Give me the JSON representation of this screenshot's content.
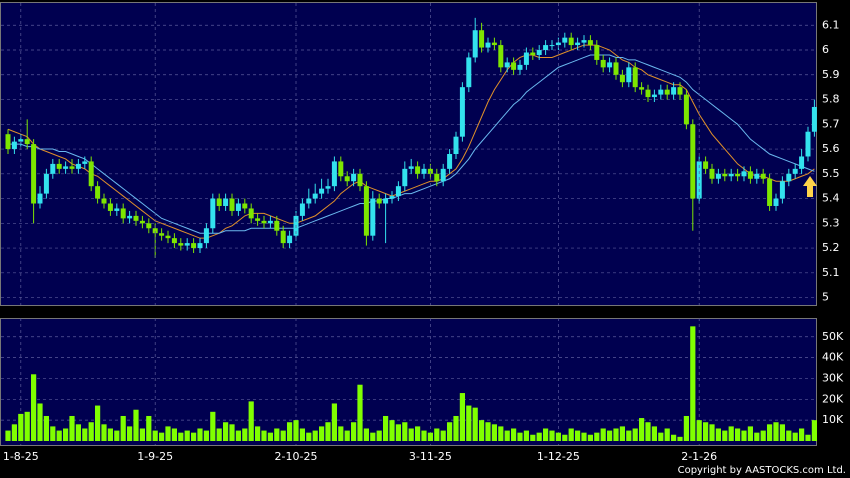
{
  "chart_data": [
    {
      "type": "candlestick",
      "open": [
        5.66,
        5.6,
        5.63,
        5.64,
        5.62,
        5.38,
        5.42,
        5.5,
        5.54,
        5.52,
        5.53,
        5.52,
        5.54,
        5.55,
        5.45,
        5.4,
        5.38,
        5.35,
        5.36,
        5.32,
        5.33,
        5.31,
        5.3,
        5.28,
        5.26,
        5.25,
        5.24,
        5.22,
        5.21,
        5.22,
        5.2,
        5.22,
        5.28,
        5.4,
        5.37,
        5.4,
        5.35,
        5.38,
        5.36,
        5.32,
        5.31,
        5.3,
        5.31,
        5.27,
        5.22,
        5.25,
        5.33,
        5.38,
        5.4,
        5.42,
        5.44,
        5.45,
        5.55,
        5.49,
        5.47,
        5.5,
        5.45,
        5.25,
        5.4,
        5.38,
        5.4,
        5.41,
        5.45,
        5.52,
        5.53,
        5.5,
        5.52,
        5.5,
        5.47,
        5.52,
        5.58,
        5.65,
        5.85,
        5.97,
        6.08,
        6.01,
        6.03,
        6.02,
        5.93,
        5.95,
        5.92,
        5.94,
        5.99,
        5.98,
        6.0,
        6.02,
        6.02,
        6.03,
        6.05,
        6.02,
        6.03,
        6.04,
        6.02,
        5.96,
        5.93,
        5.95,
        5.9,
        5.87,
        5.93,
        5.85,
        5.84,
        5.81,
        5.82,
        5.84,
        5.82,
        5.85,
        5.82,
        5.7,
        5.4,
        5.55,
        5.52,
        5.48,
        5.5,
        5.49,
        5.5,
        5.49,
        5.51,
        5.48,
        5.5,
        5.48,
        5.37,
        5.4,
        5.47,
        5.5,
        5.52,
        5.57,
        5.67
      ],
      "high": [
        5.68,
        5.65,
        5.66,
        5.72,
        5.64,
        5.45,
        5.52,
        5.56,
        5.56,
        5.55,
        5.56,
        5.56,
        5.57,
        5.57,
        5.47,
        5.42,
        5.4,
        5.38,
        5.38,
        5.35,
        5.35,
        5.33,
        5.32,
        5.3,
        5.28,
        5.27,
        5.26,
        5.24,
        5.24,
        5.24,
        5.24,
        5.3,
        5.42,
        5.42,
        5.42,
        5.42,
        5.4,
        5.4,
        5.38,
        5.34,
        5.33,
        5.33,
        5.33,
        5.29,
        5.27,
        5.35,
        5.4,
        5.44,
        5.46,
        5.48,
        5.48,
        5.57,
        5.57,
        5.51,
        5.52,
        5.52,
        5.47,
        5.43,
        5.42,
        5.42,
        5.43,
        5.47,
        5.55,
        5.56,
        5.55,
        5.54,
        5.54,
        5.52,
        5.54,
        5.6,
        5.67,
        5.87,
        5.99,
        6.13,
        6.11,
        6.05,
        6.05,
        6.04,
        5.97,
        5.97,
        5.96,
        6.01,
        6.01,
        6.02,
        6.04,
        6.04,
        6.05,
        6.07,
        6.07,
        6.05,
        6.06,
        6.06,
        6.04,
        5.98,
        5.97,
        5.97,
        5.92,
        5.95,
        5.95,
        5.87,
        5.86,
        5.84,
        5.86,
        5.86,
        5.87,
        5.87,
        5.84,
        5.72,
        5.57,
        5.57,
        5.54,
        5.52,
        5.52,
        5.52,
        5.52,
        5.53,
        5.53,
        5.52,
        5.52,
        5.5,
        5.42,
        5.49,
        5.52,
        5.54,
        5.6,
        5.69,
        5.8
      ],
      "low": [
        5.58,
        5.58,
        5.61,
        5.6,
        5.3,
        5.36,
        5.4,
        5.48,
        5.5,
        5.5,
        5.5,
        5.5,
        5.52,
        5.43,
        5.38,
        5.36,
        5.33,
        5.33,
        5.3,
        5.3,
        5.29,
        5.28,
        5.26,
        5.16,
        5.23,
        5.22,
        5.2,
        5.19,
        5.19,
        5.18,
        5.18,
        5.2,
        5.26,
        5.35,
        5.35,
        5.33,
        5.33,
        5.34,
        5.3,
        5.29,
        5.28,
        5.28,
        5.25,
        5.2,
        5.2,
        5.23,
        5.31,
        5.36,
        5.38,
        5.4,
        5.42,
        5.43,
        5.47,
        5.45,
        5.45,
        5.43,
        5.21,
        5.23,
        5.36,
        5.22,
        5.38,
        5.39,
        5.43,
        5.5,
        5.48,
        5.48,
        5.48,
        5.45,
        5.45,
        5.5,
        5.56,
        5.63,
        5.83,
        5.95,
        5.99,
        5.99,
        6.0,
        5.91,
        5.91,
        5.9,
        5.9,
        5.92,
        5.96,
        5.96,
        5.98,
        6.0,
        6.0,
        6.01,
        6.0,
        6.0,
        6.01,
        6.0,
        5.94,
        5.91,
        5.91,
        5.88,
        5.85,
        5.85,
        5.83,
        5.82,
        5.79,
        5.79,
        5.8,
        5.8,
        5.8,
        5.8,
        5.68,
        5.27,
        5.38,
        5.5,
        5.46,
        5.46,
        5.47,
        5.47,
        5.47,
        5.47,
        5.46,
        5.46,
        5.46,
        5.35,
        5.35,
        5.38,
        5.45,
        5.48,
        5.5,
        5.55,
        5.65
      ],
      "close": [
        5.6,
        5.63,
        5.64,
        5.62,
        5.38,
        5.42,
        5.5,
        5.54,
        5.52,
        5.53,
        5.52,
        5.54,
        5.55,
        5.45,
        5.4,
        5.38,
        5.35,
        5.36,
        5.32,
        5.33,
        5.31,
        5.3,
        5.28,
        5.26,
        5.25,
        5.24,
        5.22,
        5.21,
        5.22,
        5.2,
        5.22,
        5.28,
        5.4,
        5.37,
        5.4,
        5.35,
        5.38,
        5.36,
        5.32,
        5.31,
        5.3,
        5.31,
        5.27,
        5.22,
        5.25,
        5.33,
        5.38,
        5.4,
        5.42,
        5.44,
        5.45,
        5.55,
        5.49,
        5.47,
        5.5,
        5.45,
        5.25,
        5.4,
        5.38,
        5.4,
        5.41,
        5.45,
        5.52,
        5.53,
        5.5,
        5.52,
        5.5,
        5.47,
        5.52,
        5.58,
        5.65,
        5.85,
        5.97,
        6.08,
        6.01,
        6.03,
        6.02,
        5.93,
        5.95,
        5.92,
        5.94,
        5.99,
        5.98,
        6.0,
        6.02,
        6.02,
        6.03,
        6.05,
        6.02,
        6.03,
        6.04,
        6.02,
        5.96,
        5.93,
        5.95,
        5.9,
        5.87,
        5.93,
        5.85,
        5.84,
        5.81,
        5.82,
        5.84,
        5.82,
        5.85,
        5.82,
        5.7,
        5.4,
        5.55,
        5.52,
        5.48,
        5.5,
        5.49,
        5.5,
        5.49,
        5.51,
        5.48,
        5.5,
        5.48,
        5.37,
        5.4,
        5.47,
        5.5,
        5.52,
        5.57,
        5.67,
        5.77
      ],
      "up_color": "#33e2ee",
      "down_color": "#7ee600",
      "series": [
        {
          "color": "#e0902a",
          "values": [
            5.68,
            5.67,
            5.66,
            5.65,
            5.62,
            5.6,
            5.59,
            5.58,
            5.57,
            5.56,
            5.54,
            5.53,
            5.52,
            5.5,
            5.49,
            5.47,
            5.45,
            5.43,
            5.41,
            5.39,
            5.37,
            5.35,
            5.33,
            5.31,
            5.3,
            5.29,
            5.28,
            5.27,
            5.26,
            5.25,
            5.24,
            5.24,
            5.25,
            5.26,
            5.28,
            5.29,
            5.31,
            5.33,
            5.34,
            5.34,
            5.34,
            5.33,
            5.32,
            5.31,
            5.3,
            5.3,
            5.31,
            5.32,
            5.33,
            5.35,
            5.37,
            5.39,
            5.42,
            5.44,
            5.46,
            5.47,
            5.45,
            5.44,
            5.43,
            5.42,
            5.41,
            5.42,
            5.43,
            5.44,
            5.45,
            5.46,
            5.47,
            5.47,
            5.48,
            5.5,
            5.52,
            5.56,
            5.61,
            5.67,
            5.73,
            5.79,
            5.84,
            5.88,
            5.92,
            5.95,
            5.97,
            5.98,
            5.98,
            5.97,
            5.97,
            5.97,
            5.98,
            5.99,
            6.0,
            6.01,
            6.02,
            6.02,
            6.02,
            6.01,
            6.0,
            5.98,
            5.96,
            5.95,
            5.93,
            5.92,
            5.9,
            5.89,
            5.88,
            5.87,
            5.86,
            5.86,
            5.84,
            5.79,
            5.74,
            5.7,
            5.66,
            5.63,
            5.6,
            5.57,
            5.54,
            5.52,
            5.5,
            5.49,
            5.49,
            5.48,
            5.47,
            5.47,
            5.47,
            5.48,
            5.49,
            5.5,
            5.52
          ]
        },
        {
          "color": "#6ab8ee",
          "values": [
            5.62,
            5.62,
            5.62,
            5.61,
            5.61,
            5.6,
            5.6,
            5.6,
            5.59,
            5.59,
            5.58,
            5.57,
            5.56,
            5.54,
            5.52,
            5.5,
            5.48,
            5.46,
            5.44,
            5.42,
            5.4,
            5.38,
            5.36,
            5.34,
            5.32,
            5.31,
            5.3,
            5.29,
            5.28,
            5.27,
            5.26,
            5.26,
            5.26,
            5.26,
            5.27,
            5.27,
            5.27,
            5.27,
            5.28,
            5.28,
            5.28,
            5.28,
            5.28,
            5.28,
            5.28,
            5.28,
            5.29,
            5.3,
            5.31,
            5.32,
            5.33,
            5.34,
            5.35,
            5.36,
            5.37,
            5.38,
            5.38,
            5.39,
            5.39,
            5.4,
            5.4,
            5.41,
            5.42,
            5.42,
            5.43,
            5.44,
            5.45,
            5.46,
            5.47,
            5.48,
            5.5,
            5.53,
            5.56,
            5.6,
            5.63,
            5.66,
            5.69,
            5.72,
            5.75,
            5.78,
            5.8,
            5.83,
            5.85,
            5.87,
            5.89,
            5.91,
            5.93,
            5.94,
            5.95,
            5.96,
            5.97,
            5.98,
            5.98,
            5.98,
            5.98,
            5.97,
            5.97,
            5.96,
            5.96,
            5.95,
            5.94,
            5.93,
            5.92,
            5.91,
            5.9,
            5.89,
            5.87,
            5.84,
            5.82,
            5.8,
            5.78,
            5.76,
            5.74,
            5.72,
            5.7,
            5.67,
            5.64,
            5.62,
            5.6,
            5.58,
            5.57,
            5.56,
            5.55,
            5.54,
            5.53,
            5.52,
            5.51
          ]
        }
      ],
      "ylim": [
        4.97,
        6.19
      ],
      "yticks": [
        5,
        5.1,
        5.2,
        5.3,
        5.4,
        5.5,
        5.6,
        5.7,
        5.8,
        5.9,
        6,
        6.1
      ],
      "grid": true
    },
    {
      "type": "bar",
      "categories": [
        null,
        null,
        "1-8-25",
        null,
        null,
        null,
        null,
        null,
        null,
        null,
        null,
        null,
        null,
        null,
        null,
        null,
        null,
        null,
        null,
        null,
        null,
        null,
        null,
        "1-9-25",
        null,
        null,
        null,
        null,
        null,
        null,
        null,
        null,
        null,
        null,
        null,
        null,
        null,
        null,
        null,
        null,
        null,
        null,
        null,
        null,
        null,
        "2-10-25",
        null,
        null,
        null,
        null,
        null,
        null,
        null,
        null,
        null,
        null,
        null,
        null,
        null,
        null,
        null,
        null,
        null,
        null,
        null,
        null,
        "3-11-25",
        null,
        null,
        null,
        null,
        null,
        null,
        null,
        null,
        null,
        null,
        null,
        null,
        null,
        null,
        null,
        null,
        null,
        null,
        null,
        "1-12-25",
        null,
        null,
        null,
        null,
        null,
        null,
        null,
        null,
        null,
        null,
        null,
        null,
        null,
        null,
        null,
        null,
        null,
        null,
        null,
        null,
        null,
        "2-1-26",
        null,
        null,
        null,
        null,
        null,
        null,
        null,
        null,
        null,
        null,
        null,
        null,
        null,
        null,
        null,
        null,
        null,
        null
      ],
      "values": [
        5000,
        8000,
        13000,
        14000,
        32000,
        18000,
        12000,
        7000,
        5000,
        6000,
        12000,
        8000,
        6000,
        9000,
        17000,
        8000,
        6000,
        5000,
        12000,
        7000,
        15000,
        6000,
        12000,
        5000,
        4000,
        7000,
        6000,
        4000,
        5000,
        4000,
        6000,
        5000,
        14000,
        6000,
        9000,
        8000,
        5000,
        6000,
        19000,
        7000,
        5000,
        4000,
        6000,
        5000,
        9000,
        10000,
        6000,
        4000,
        5000,
        7000,
        9000,
        18000,
        7000,
        5000,
        9000,
        27000,
        6000,
        4000,
        5000,
        12000,
        10000,
        8000,
        9000,
        6000,
        7000,
        5000,
        4000,
        6000,
        5000,
        9000,
        12000,
        23000,
        17000,
        16000,
        10000,
        9000,
        8000,
        7000,
        5000,
        6000,
        4000,
        5000,
        3000,
        4000,
        6000,
        5000,
        4000,
        3000,
        6000,
        5000,
        4000,
        3000,
        4000,
        6000,
        5000,
        6000,
        7000,
        5000,
        6000,
        11000,
        9000,
        7000,
        4000,
        6000,
        3000,
        2000,
        12000,
        55000,
        10000,
        9000,
        8000,
        6000,
        5000,
        7000,
        6000,
        5000,
        7000,
        4000,
        5000,
        8000,
        9000,
        8000,
        5000,
        4000,
        6000,
        3000,
        10000
      ],
      "color": "#80ff00",
      "ylim": [
        0,
        59000
      ],
      "yticks": [
        {
          "value": 10000,
          "label": "10K"
        },
        {
          "value": 20000,
          "label": "20K"
        },
        {
          "value": 30000,
          "label": "30K"
        },
        {
          "value": 40000,
          "label": "40K"
        },
        {
          "value": 50000,
          "label": "50K"
        }
      ],
      "grid": true
    }
  ],
  "footer": "Copyright by AASTOCKS.com Ltd."
}
